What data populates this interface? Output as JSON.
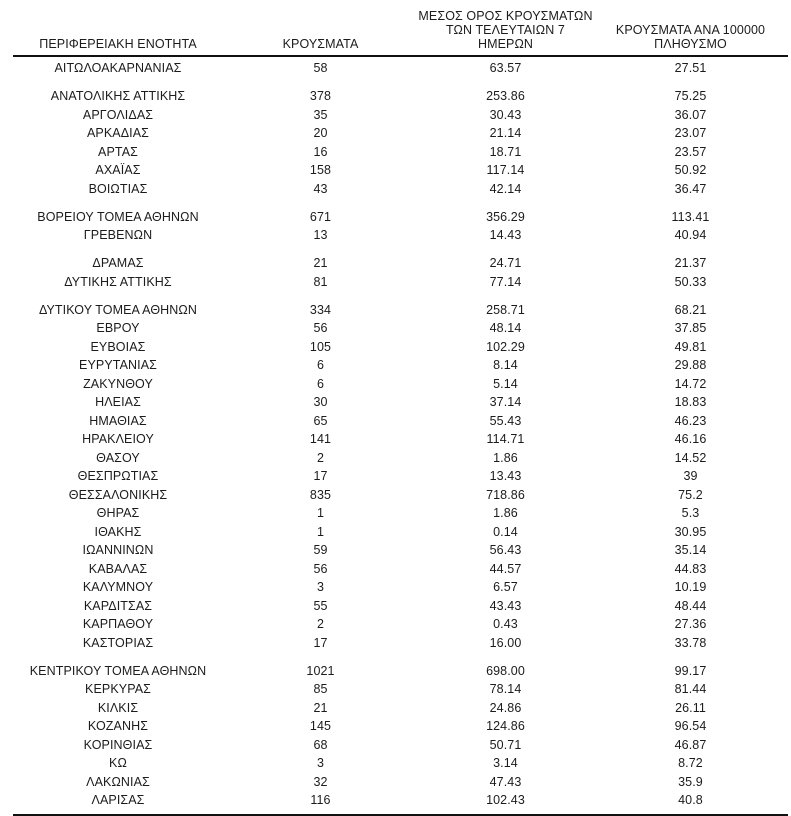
{
  "table": {
    "headers": {
      "region": "ΠΕΡΙΦΕΡΕΙΑΚΗ ΕΝΟΤΗΤΑ",
      "cases": "ΚΡΟΥΣΜΑΤΑ",
      "avg7_line1": "ΜΕΣΟΣ ΟΡΟΣ ΚΡΟΥΣΜΑΤΩΝ",
      "avg7_line2": "ΤΩΝ ΤΕΛΕΥΤΑΙΩΝ 7 ΗΜΕΡΩΝ",
      "per100k_line1": "ΚΡΟΥΣΜΑΤΑ ΑΝΑ 100000",
      "per100k_line2": "ΠΛΗΘΥΣΜΟ"
    },
    "rows": [
      {
        "region": "ΑΙΤΩΛΟΑΚΑΡΝΑΝΙΑΣ",
        "cases": "58",
        "avg7": "63.57",
        "per100k": "27.51",
        "gap_before": false
      },
      {
        "region": "ΑΝΑΤΟΛΙΚΗΣ ΑΤΤΙΚΗΣ",
        "cases": "378",
        "avg7": "253.86",
        "per100k": "75.25",
        "gap_before": true
      },
      {
        "region": "ΑΡΓΟΛΙΔΑΣ",
        "cases": "35",
        "avg7": "30.43",
        "per100k": "36.07",
        "gap_before": false
      },
      {
        "region": "ΑΡΚΑΔΙΑΣ",
        "cases": "20",
        "avg7": "21.14",
        "per100k": "23.07",
        "gap_before": false
      },
      {
        "region": "ΑΡΤΑΣ",
        "cases": "16",
        "avg7": "18.71",
        "per100k": "23.57",
        "gap_before": false
      },
      {
        "region": "ΑΧΑΪΑΣ",
        "cases": "158",
        "avg7": "117.14",
        "per100k": "50.92",
        "gap_before": false
      },
      {
        "region": "ΒΟΙΩΤΙΑΣ",
        "cases": "43",
        "avg7": "42.14",
        "per100k": "36.47",
        "gap_before": false
      },
      {
        "region": "ΒΟΡΕΙΟΥ ΤΟΜΕΑ ΑΘΗΝΩΝ",
        "cases": "671",
        "avg7": "356.29",
        "per100k": "113.41",
        "gap_before": true
      },
      {
        "region": "ΓΡΕΒΕΝΩΝ",
        "cases": "13",
        "avg7": "14.43",
        "per100k": "40.94",
        "gap_before": false
      },
      {
        "region": "ΔΡΑΜΑΣ",
        "cases": "21",
        "avg7": "24.71",
        "per100k": "21.37",
        "gap_before": true
      },
      {
        "region": "ΔΥΤΙΚΗΣ ΑΤΤΙΚΗΣ",
        "cases": "81",
        "avg7": "77.14",
        "per100k": "50.33",
        "gap_before": false
      },
      {
        "region": "ΔΥΤΙΚΟΥ ΤΟΜΕΑ ΑΘΗΝΩΝ",
        "cases": "334",
        "avg7": "258.71",
        "per100k": "68.21",
        "gap_before": true
      },
      {
        "region": "ΕΒΡΟΥ",
        "cases": "56",
        "avg7": "48.14",
        "per100k": "37.85",
        "gap_before": false
      },
      {
        "region": "ΕΥΒΟΙΑΣ",
        "cases": "105",
        "avg7": "102.29",
        "per100k": "49.81",
        "gap_before": false
      },
      {
        "region": "ΕΥΡΥΤΑΝΙΑΣ",
        "cases": "6",
        "avg7": "8.14",
        "per100k": "29.88",
        "gap_before": false
      },
      {
        "region": "ΖΑΚΥΝΘΟΥ",
        "cases": "6",
        "avg7": "5.14",
        "per100k": "14.72",
        "gap_before": false
      },
      {
        "region": "ΗΛΕΙΑΣ",
        "cases": "30",
        "avg7": "37.14",
        "per100k": "18.83",
        "gap_before": false
      },
      {
        "region": "ΗΜΑΘΙΑΣ",
        "cases": "65",
        "avg7": "55.43",
        "per100k": "46.23",
        "gap_before": false
      },
      {
        "region": "ΗΡΑΚΛΕΙΟΥ",
        "cases": "141",
        "avg7": "114.71",
        "per100k": "46.16",
        "gap_before": false
      },
      {
        "region": "ΘΑΣΟΥ",
        "cases": "2",
        "avg7": "1.86",
        "per100k": "14.52",
        "gap_before": false
      },
      {
        "region": "ΘΕΣΠΡΩΤΙΑΣ",
        "cases": "17",
        "avg7": "13.43",
        "per100k": "39",
        "gap_before": false
      },
      {
        "region": "ΘΕΣΣΑΛΟΝΙΚΗΣ",
        "cases": "835",
        "avg7": "718.86",
        "per100k": "75.2",
        "gap_before": false
      },
      {
        "region": "ΘΗΡΑΣ",
        "cases": "1",
        "avg7": "1.86",
        "per100k": "5.3",
        "gap_before": false
      },
      {
        "region": "ΙΘΑΚΗΣ",
        "cases": "1",
        "avg7": "0.14",
        "per100k": "30.95",
        "gap_before": false
      },
      {
        "region": "ΙΩΑΝΝΙΝΩΝ",
        "cases": "59",
        "avg7": "56.43",
        "per100k": "35.14",
        "gap_before": false
      },
      {
        "region": "ΚΑΒΑΛΑΣ",
        "cases": "56",
        "avg7": "44.57",
        "per100k": "44.83",
        "gap_before": false
      },
      {
        "region": "ΚΑΛΥΜΝΟΥ",
        "cases": "3",
        "avg7": "6.57",
        "per100k": "10.19",
        "gap_before": false
      },
      {
        "region": "ΚΑΡΔΙΤΣΑΣ",
        "cases": "55",
        "avg7": "43.43",
        "per100k": "48.44",
        "gap_before": false
      },
      {
        "region": "ΚΑΡΠΑΘΟΥ",
        "cases": "2",
        "avg7": "0.43",
        "per100k": "27.36",
        "gap_before": false
      },
      {
        "region": "ΚΑΣΤΟΡΙΑΣ",
        "cases": "17",
        "avg7": "16.00",
        "per100k": "33.78",
        "gap_before": false
      },
      {
        "region": "ΚΕΝΤΡΙΚΟΥ ΤΟΜΕΑ ΑΘΗΝΩΝ",
        "cases": "1021",
        "avg7": "698.00",
        "per100k": "99.17",
        "gap_before": true
      },
      {
        "region": "ΚΕΡΚΥΡΑΣ",
        "cases": "85",
        "avg7": "78.14",
        "per100k": "81.44",
        "gap_before": false
      },
      {
        "region": "ΚΙΛΚΙΣ",
        "cases": "21",
        "avg7": "24.86",
        "per100k": "26.11",
        "gap_before": false
      },
      {
        "region": "ΚΟΖΑΝΗΣ",
        "cases": "145",
        "avg7": "124.86",
        "per100k": "96.54",
        "gap_before": false
      },
      {
        "region": "ΚΟΡΙΝΘΙΑΣ",
        "cases": "68",
        "avg7": "50.71",
        "per100k": "46.87",
        "gap_before": false
      },
      {
        "region": "ΚΩ",
        "cases": "3",
        "avg7": "3.14",
        "per100k": "8.72",
        "gap_before": false
      },
      {
        "region": "ΛΑΚΩΝΙΑΣ",
        "cases": "32",
        "avg7": "47.43",
        "per100k": "35.9",
        "gap_before": false
      },
      {
        "region": "ΛΑΡΙΣΑΣ",
        "cases": "116",
        "avg7": "102.43",
        "per100k": "40.8",
        "gap_before": false
      }
    ]
  }
}
